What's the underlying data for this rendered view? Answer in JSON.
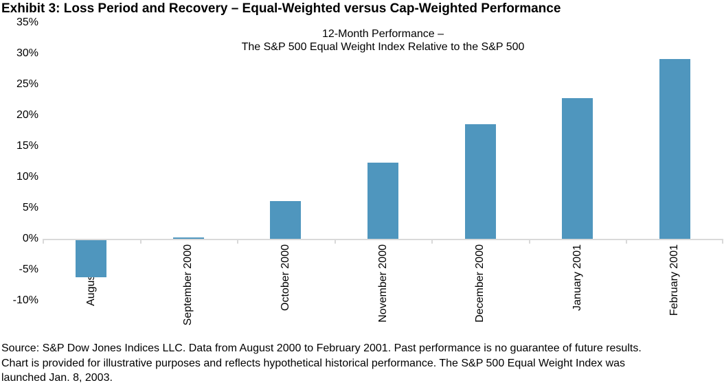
{
  "page": {
    "title": "Exhibit 3: Loss Period and Recovery – Equal-Weighted versus Cap-Weighted Performance"
  },
  "chart_data": {
    "type": "bar",
    "title_lines": [
      "12-Month Performance –",
      "The S&P 500 Equal Weight Index Relative to the S&P 500"
    ],
    "categories": [
      "August 2000",
      "September 2000",
      "October 2000",
      "November 2000",
      "December 2000",
      "January 2001",
      "February 2001"
    ],
    "values": [
      -6.0,
      0.2,
      6.1,
      12.3,
      18.6,
      22.8,
      29.1
    ],
    "ylim": [
      -10,
      35
    ],
    "ytick_step": 5,
    "ytick_suffix": "%",
    "grid": false,
    "legend": "none",
    "bar_color": "#4F96BE",
    "axis_color": "#D9D9D9",
    "text_color": "#000000"
  },
  "footer": {
    "lines": [
      "Source: S&P Dow Jones Indices LLC. Data from August 2000 to February 2001. Past performance is no guarantee of future results.",
      "Chart is provided for illustrative purposes and reflects hypothetical historical performance. The S&P 500 Equal Weight Index was",
      "launched Jan. 8, 2003."
    ]
  }
}
